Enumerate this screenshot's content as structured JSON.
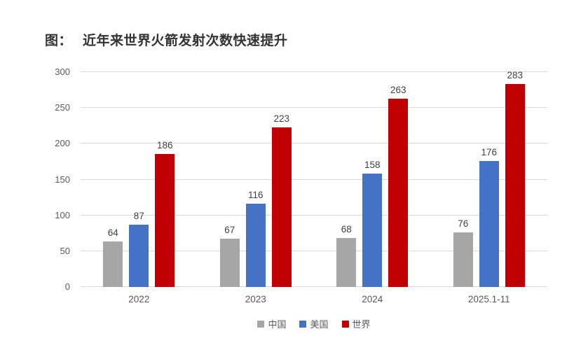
{
  "title": {
    "prefix": "图：",
    "text": "近年来世界火箭发射次数快速提升"
  },
  "colors": {
    "china_series": "#A6A6A6",
    "usa_series": "#4472C4",
    "world_series": "#C00000",
    "gridline": "#D9D9D9",
    "axis_text": "#595959",
    "value_label_text": "#404040",
    "title_text": "#333333",
    "background": "#FFFFFF"
  },
  "chart_data": {
    "type": "bar",
    "title": "近年来世界火箭发射次数快速提升",
    "categories": [
      "2022",
      "2023",
      "2024",
      "2025.1-11"
    ],
    "series": [
      {
        "key": "china",
        "name": "中国",
        "color": "#A6A6A6",
        "values": [
          64,
          67,
          68,
          76
        ]
      },
      {
        "key": "usa",
        "name": "美国",
        "color": "#4472C4",
        "values": [
          87,
          116,
          158,
          176
        ]
      },
      {
        "key": "world",
        "name": "世界",
        "color": "#C00000",
        "values": [
          186,
          223,
          263,
          283
        ]
      }
    ],
    "xlabel": "",
    "ylabel": "",
    "ylim": [
      0,
      300
    ],
    "yticks": [
      0,
      50,
      100,
      150,
      200,
      250,
      300
    ],
    "grid": true,
    "value_labels": true,
    "legend_position": "bottom"
  }
}
